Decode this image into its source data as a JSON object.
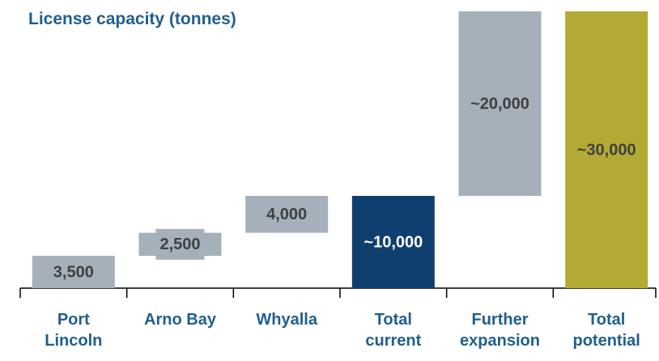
{
  "chart_data": {
    "type": "waterfall",
    "title": "License capacity (tonnes)",
    "categories": [
      "Port Lincoln",
      "Arno Bay",
      "Whyalla",
      "Total current",
      "Further expansion",
      "Total potential"
    ],
    "values": [
      3500,
      2500,
      4000,
      10000,
      20000,
      30000
    ],
    "value_labels": [
      "3,500",
      "2,500",
      "4,000",
      "~10,000",
      "~20,000",
      "~30,000"
    ],
    "colors": [
      "#a5b0bb",
      "#a5b0bb",
      "#a5b0bb",
      "#0f3f6e",
      "#a5b0bb",
      "#b3aa35"
    ]
  }
}
